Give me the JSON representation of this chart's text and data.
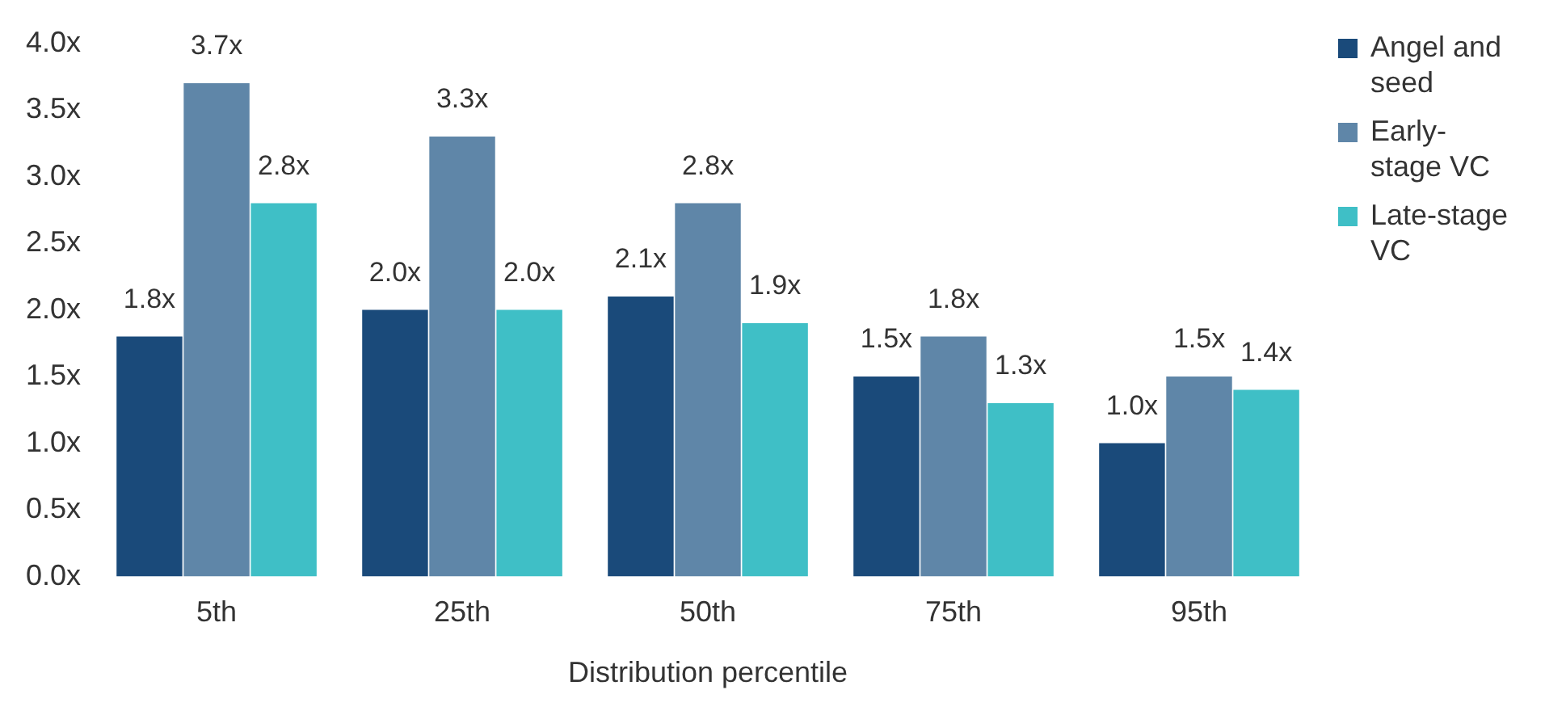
{
  "chart_data": {
    "type": "bar",
    "xlabel": "Distribution percentile",
    "categories": [
      "5th",
      "25th",
      "50th",
      "75th",
      "95th"
    ],
    "series": [
      {
        "name": "Angel and seed",
        "color": "#1a4a7a",
        "values": [
          1.8,
          2.0,
          2.1,
          1.5,
          1.0
        ],
        "value_labels": [
          "1.8x",
          "2.0x",
          "2.1x",
          "1.5x",
          "1.0x"
        ]
      },
      {
        "name": "Early-stage VC",
        "color": "#5f86a8",
        "values": [
          3.7,
          3.3,
          2.8,
          1.8,
          1.5
        ],
        "value_labels": [
          "3.7x",
          "3.3x",
          "2.8x",
          "1.8x",
          "1.5x"
        ]
      },
      {
        "name": "Late-stage VC",
        "color": "#3fbfc6",
        "values": [
          2.8,
          2.0,
          1.9,
          1.3,
          1.4
        ],
        "value_labels": [
          "2.8x",
          "2.0x",
          "1.9x",
          "1.3x",
          "1.4x"
        ]
      }
    ],
    "ylim": [
      0,
      4
    ],
    "yticks": [
      {
        "value": 0,
        "label": "0.0x"
      },
      {
        "value": 0.5,
        "label": "0.5x"
      },
      {
        "value": 1,
        "label": "1.0x"
      },
      {
        "value": 1.5,
        "label": "1.5x"
      },
      {
        "value": 2,
        "label": "2.0x"
      },
      {
        "value": 2.5,
        "label": "2.5x"
      },
      {
        "value": 3,
        "label": "3.0x"
      },
      {
        "value": 3.5,
        "label": "3.5x"
      },
      {
        "value": 4,
        "label": "4.0x"
      }
    ],
    "grid": false,
    "legend": "top right"
  }
}
